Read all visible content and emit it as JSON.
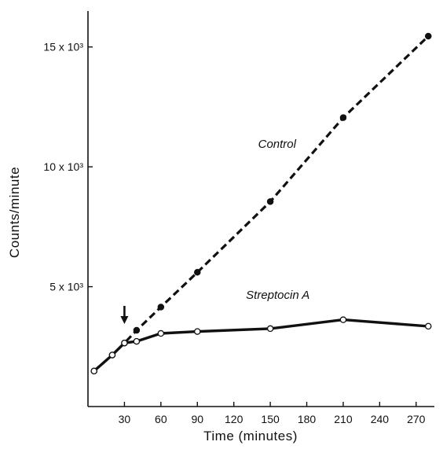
{
  "chart_data": {
    "type": "line",
    "xlabel": "Time (minutes)",
    "ylabel": "Counts/minute",
    "xlim": [
      0,
      285
    ],
    "ylim": [
      0,
      16500
    ],
    "x_ticks": [
      30,
      60,
      90,
      120,
      150,
      180,
      210,
      240,
      270
    ],
    "y_ticks": [
      {
        "value": 5000,
        "label": "5 x 10³"
      },
      {
        "value": 10000,
        "label": "10 x 10³"
      },
      {
        "value": 15000,
        "label": "15 x 10³"
      }
    ],
    "arrow_at_x": 30,
    "grid": false,
    "series": [
      {
        "name": "Control",
        "style": "dashed",
        "marker": "filled-circle",
        "color": "#111111",
        "points": [
          [
            5,
            1480
          ],
          [
            20,
            2150
          ],
          [
            30,
            2650
          ],
          [
            40,
            3180
          ],
          [
            60,
            4150
          ],
          [
            90,
            5600
          ],
          [
            150,
            8550
          ],
          [
            210,
            12050
          ],
          [
            280,
            15450
          ]
        ]
      },
      {
        "name": "Streptocin A",
        "style": "solid",
        "marker": "open-circle",
        "color": "#111111",
        "points": [
          [
            5,
            1480
          ],
          [
            20,
            2150
          ],
          [
            30,
            2650
          ],
          [
            40,
            2720
          ],
          [
            60,
            3050
          ],
          [
            90,
            3130
          ],
          [
            150,
            3250
          ],
          [
            210,
            3620
          ],
          [
            280,
            3350
          ]
        ]
      }
    ],
    "series_label_positions": [
      {
        "series": "Control",
        "x": 140,
        "y": 10800
      },
      {
        "series": "Streptocin A",
        "x": 130,
        "y": 4500
      }
    ]
  }
}
